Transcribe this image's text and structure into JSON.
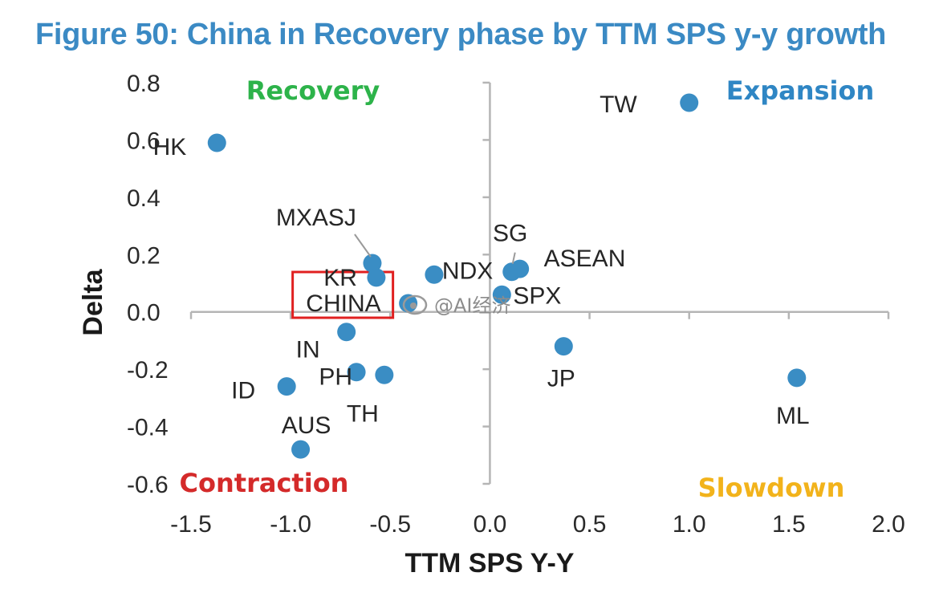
{
  "figure": {
    "title": "Figure 50: China in Recovery phase by TTM SPS y-y growth"
  },
  "watermark": "@AI经济",
  "colors": {
    "title": "#3b8ac4",
    "point": "#3a8dc4",
    "axis": "#b5b5b5",
    "recovery": "#2db34a",
    "expansion": "#2f86c4",
    "contraction": "#d42a2a",
    "slowdown": "#f2b31b",
    "highlight_box": "#e02020"
  },
  "chart_data": {
    "type": "scatter",
    "title": "Figure 50: China in Recovery phase by TTM SPS y-y growth",
    "xlabel": "TTM SPS Y-Y",
    "ylabel": "Delta",
    "xlim": [
      -1.5,
      2.0
    ],
    "ylim": [
      -0.6,
      0.8
    ],
    "xticks": [
      -1.5,
      -1.0,
      -0.5,
      0.0,
      0.5,
      1.0,
      1.5,
      2.0
    ],
    "xtick_labels": [
      "-1.5",
      "-1.0",
      "-0.5",
      "0.0",
      "0.5",
      "1.0",
      "1.5",
      "2.0"
    ],
    "yticks": [
      0.8,
      0.6,
      0.4,
      0.2,
      0.0,
      -0.2,
      -0.4,
      -0.6
    ],
    "ytick_labels": [
      "0.8",
      "0.6",
      "0.4",
      "0.2",
      "0.0",
      "-0.2",
      "-0.4",
      "-0.6"
    ],
    "points": [
      {
        "label": "TW",
        "x": 1.0,
        "y": 0.73
      },
      {
        "label": "HK",
        "x": -1.37,
        "y": 0.59
      },
      {
        "label": "MXASJ",
        "x": -0.59,
        "y": 0.17
      },
      {
        "label": "KR",
        "x": -0.57,
        "y": 0.12
      },
      {
        "label": "NDX",
        "x": -0.28,
        "y": 0.13
      },
      {
        "label": "SG",
        "x": 0.11,
        "y": 0.14
      },
      {
        "label": "ASEAN",
        "x": 0.15,
        "y": 0.15
      },
      {
        "label": "SPX",
        "x": 0.06,
        "y": 0.06
      },
      {
        "label": "CHINA",
        "x": -0.41,
        "y": 0.03
      },
      {
        "label": "IN",
        "x": -0.72,
        "y": -0.07
      },
      {
        "label": "PH",
        "x": -0.67,
        "y": -0.21
      },
      {
        "label": "TH",
        "x": -0.53,
        "y": -0.22
      },
      {
        "label": "ID",
        "x": -1.02,
        "y": -0.26
      },
      {
        "label": "AUS",
        "x": -0.95,
        "y": -0.48
      },
      {
        "label": "JP",
        "x": 0.37,
        "y": -0.12
      },
      {
        "label": "ML",
        "x": 1.54,
        "y": -0.23
      }
    ],
    "quadrants": [
      {
        "name": "Recovery",
        "position": "top-left"
      },
      {
        "name": "Expansion",
        "position": "top-right"
      },
      {
        "name": "Contraction",
        "position": "bottom-left"
      },
      {
        "name": "Slowdown",
        "position": "bottom-right"
      }
    ],
    "highlighted": "CHINA",
    "grid": false
  }
}
